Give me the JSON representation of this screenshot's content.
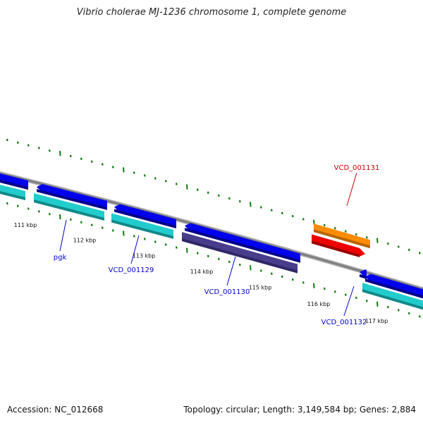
{
  "title": "Vibrio cholerae MJ-1236 chromosome 1, complete genome",
  "footer": {
    "accession": "Accession: NC_012668",
    "summary": "Topology: circular; Length: 3,149,584 bp; Genes: 2,884"
  },
  "colors": {
    "backbone": "#808080",
    "tick": "#0a7a0a",
    "gene_forward": "#0000ee",
    "gene_forward_shade": "#00008a",
    "cds": "#22cccc",
    "cds_shade": "#118888",
    "pseudo": "#483d8b",
    "pseudo_shade": "#2e2666",
    "rna_gene": "#ff8c00",
    "rna_gene_shade": "#b86400",
    "rna": "#ee0000",
    "rna_shade": "#990000",
    "label_blue": "#0000cc",
    "label_red": "#cc0000"
  },
  "scale_labels": [
    "111 kbp",
    "112 kbp",
    "113 kbp",
    "114 kbp",
    "115 kbp",
    "116 kbp",
    "117 kbp"
  ],
  "gene_labels": [
    {
      "text": "pgk",
      "color": "label_blue"
    },
    {
      "text": "VCD_001129",
      "color": "label_blue"
    },
    {
      "text": "VCD_001130",
      "color": "label_blue"
    },
    {
      "text": "VCD_001131",
      "color": "label_red"
    },
    {
      "text": "VCD_001132",
      "color": "label_blue"
    }
  ]
}
